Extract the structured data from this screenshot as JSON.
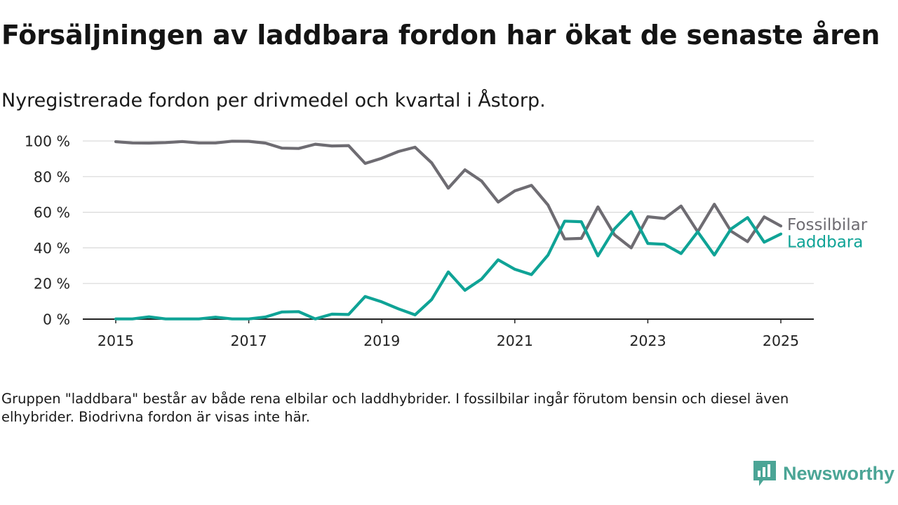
{
  "header": {
    "title": "Försäljningen av laddbara fordon har ökat de senaste åren",
    "subtitle": "Nyregistrerade fordon per drivmedel och kvartal i Åstorp."
  },
  "footnote": "Gruppen \"laddbara\" består av både rena elbilar och laddhybrider. I fossilbilar ingår förutom bensin och diesel även elhybrider. Biodrivna fordon är visas inte här.",
  "brand": {
    "name": "Newsworthy",
    "icon": "newsworthy-logo-icon",
    "color": "#4ba596"
  },
  "colors": {
    "fossil": "#6e6c72",
    "laddbara": "#0fa396",
    "grid": "#d9d9d9",
    "axis": "#222222"
  },
  "chart_data": {
    "type": "line",
    "x_ticks": [
      "2015",
      "2017",
      "2019",
      "2021",
      "2023",
      "2025"
    ],
    "y_ticks": [
      "0 %",
      "20 %",
      "40 %",
      "60 %",
      "80 %",
      "100 %"
    ],
    "ylim": [
      0,
      100
    ],
    "grid": "horizontal",
    "x": [
      "2015 Q1",
      "2015 Q2",
      "2015 Q3",
      "2015 Q4",
      "2016 Q1",
      "2016 Q2",
      "2016 Q3",
      "2016 Q4",
      "2017 Q1",
      "2017 Q2",
      "2017 Q3",
      "2017 Q4",
      "2018 Q1",
      "2018 Q2",
      "2018 Q3",
      "2018 Q4",
      "2019 Q1",
      "2019 Q2",
      "2019 Q3",
      "2019 Q4",
      "2020 Q1",
      "2020 Q2",
      "2020 Q3",
      "2020 Q4",
      "2021 Q1",
      "2021 Q2",
      "2021 Q3",
      "2021 Q4",
      "2022 Q1",
      "2022 Q2",
      "2022 Q3",
      "2022 Q4",
      "2023 Q1",
      "2023 Q2",
      "2023 Q3",
      "2023 Q4",
      "2024 Q1",
      "2024 Q2",
      "2024 Q3",
      "2024 Q4",
      "2025 Q1"
    ],
    "series": [
      {
        "name": "Fossilbilar",
        "color": "#6e6c72",
        "values": [
          99.6,
          98.9,
          98.8,
          99.1,
          99.7,
          98.9,
          98.9,
          99.9,
          99.8,
          98.8,
          96.0,
          95.8,
          98.2,
          97.2,
          97.4,
          87.4,
          90.3,
          94.1,
          96.5,
          87.7,
          73.5,
          83.8,
          77.5,
          65.7,
          72.0,
          75.1,
          64.0,
          45.0,
          45.3,
          63.0,
          47.3,
          40.0,
          57.5,
          56.5,
          63.5,
          49.0,
          64.5,
          49.4,
          43.5,
          57.4,
          52.3
        ]
      },
      {
        "name": "Laddbara",
        "color": "#0fa396",
        "values": [
          0.1,
          0.1,
          1.3,
          0.1,
          0.1,
          0.1,
          1.1,
          0.1,
          0.1,
          1.2,
          4.0,
          4.2,
          0.1,
          2.8,
          2.6,
          12.7,
          9.7,
          5.8,
          2.4,
          11.0,
          26.5,
          16.2,
          22.5,
          33.3,
          28.0,
          25.0,
          36.0,
          55.0,
          54.7,
          35.5,
          50.7,
          60.3,
          42.5,
          42.0,
          36.8,
          49.0,
          36.0,
          50.6,
          57.0,
          43.2,
          47.8
        ]
      }
    ]
  }
}
